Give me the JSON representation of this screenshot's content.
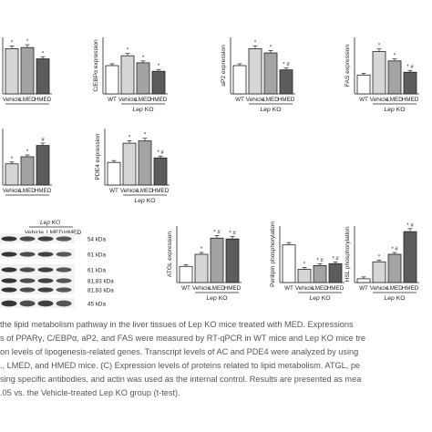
{
  "figure": {
    "charts": [
      {
        "ylabel": "",
        "categories": [
          "Vehicle",
          "LMED",
          "HMED"
        ],
        "sig": [
          "*",
          "*",
          "*"
        ],
        "group_label_partial": ""
      },
      {
        "ylabel": "C/EBPα expression",
        "categories": [
          "WT",
          "Vehicle",
          "LMED",
          "HMED"
        ],
        "sig": [
          "",
          "*",
          "*",
          "*"
        ],
        "group_label": "Lep KO"
      },
      {
        "ylabel": "aP2 expression",
        "categories": [
          "WT",
          "Vehicle",
          "LMED",
          "HMED"
        ],
        "sig": [
          "",
          "*",
          "*",
          "* #"
        ],
        "group_label": "Lep KO"
      },
      {
        "ylabel": "FAS expression",
        "categories": [
          "WT",
          "Vehicle",
          "LMED",
          "HMED"
        ],
        "sig": [
          "",
          "*",
          "*",
          "* #"
        ],
        "group_label": "Lep KO"
      },
      {
        "ylabel": "",
        "categories": [
          "Vehicle",
          "LMED",
          "HMED"
        ],
        "sig": [
          "*",
          "*",
          "#"
        ],
        "group_label_partial": ""
      },
      {
        "ylabel": "PDE4 expression",
        "categories": [
          "WT",
          "Vehicle",
          "LMED",
          "HMED"
        ],
        "sig": [
          "",
          "*",
          "*",
          "* #"
        ],
        "group_label": "Lep KO"
      },
      {
        "ylabel": "ATGL expression",
        "categories": [
          "WT",
          "Vehicle",
          "LMED",
          "HMED"
        ],
        "sig": [
          "",
          "*",
          "* #",
          "* #"
        ],
        "group_label": "Lep KO"
      },
      {
        "ylabel": "Perilipin phosphorylation",
        "categories": [
          "WT",
          "Vehicle",
          "LMED",
          "HMED"
        ],
        "sig": [
          "",
          "*",
          "* #",
          "* #"
        ],
        "group_label": "Lep KO"
      },
      {
        "ylabel": "HSL phosphorylation",
        "categories": [
          "WT",
          "Vehicle",
          "LMED",
          "HMED"
        ],
        "sig": [
          "",
          "*",
          "* #",
          "* #"
        ],
        "group_label": "Lep KO"
      }
    ],
    "western_blot": {
      "group_label": "Lep KO",
      "lanes": [
        "Vehicle",
        "LMED",
        "HMED"
      ],
      "markers": [
        "54 kDa",
        "61 kDa",
        "61 kDa",
        "81,83 kDa",
        "81,83 kDa",
        "45 kDa"
      ]
    }
  },
  "chart_data": [
    {
      "type": "bar",
      "title": "",
      "xlabel": "Lep KO",
      "ylabel": "",
      "categories": [
        "Vehicle",
        "LMED",
        "HMED"
      ],
      "values": [
        2.0,
        2.05,
        1.55
      ],
      "ylim": [
        0,
        2.5
      ]
    },
    {
      "type": "bar",
      "title": "",
      "xlabel": "Lep KO",
      "ylabel": "C/EBPα expression",
      "categories": [
        "WT",
        "Vehicle",
        "LMED",
        "HMED"
      ],
      "values": [
        1.0,
        1.35,
        1.1,
        0.8
      ],
      "ylim": [
        0,
        2.0
      ]
    },
    {
      "type": "bar",
      "title": "",
      "xlabel": "Lep KO",
      "ylabel": "aP2 expression",
      "categories": [
        "WT",
        "Vehicle",
        "LMED",
        "HMED"
      ],
      "values": [
        1.0,
        1.6,
        1.45,
        0.85
      ],
      "ylim": [
        0,
        2.0
      ]
    },
    {
      "type": "bar",
      "title": "",
      "xlabel": "Lep KO",
      "ylabel": "FAS expression",
      "categories": [
        "WT",
        "Vehicle",
        "LMED",
        "HMED"
      ],
      "values": [
        1.0,
        2.25,
        1.75,
        1.15
      ],
      "ylim": [
        0,
        3.0
      ]
    },
    {
      "type": "bar",
      "title": "",
      "xlabel": "Lep KO",
      "ylabel": "",
      "categories": [
        "Vehicle",
        "LMED",
        "HMED"
      ],
      "values": [
        0.75,
        1.0,
        1.4
      ],
      "ylim": [
        0,
        2.0
      ]
    },
    {
      "type": "bar",
      "title": "",
      "xlabel": "Lep KO",
      "ylabel": "PDE4 expression",
      "categories": [
        "WT",
        "Vehicle",
        "LMED",
        "HMED"
      ],
      "values": [
        1.0,
        1.85,
        1.95,
        1.2
      ],
      "ylim": [
        0,
        2.5
      ]
    },
    {
      "type": "bar",
      "title": "",
      "xlabel": "Lep KO",
      "ylabel": "ATGL expression",
      "categories": [
        "WT",
        "Vehicle",
        "LMED",
        "HMED"
      ],
      "values": [
        1.0,
        1.75,
        2.75,
        2.7
      ],
      "ylim": [
        0,
        3.5
      ]
    },
    {
      "type": "bar",
      "title": "",
      "xlabel": "Lep KO",
      "ylabel": "Perilipin phosphorylation",
      "categories": [
        "WT",
        "Vehicle",
        "LMED",
        "HMED"
      ],
      "values": [
        1.0,
        0.35,
        0.45,
        0.5
      ],
      "ylim": [
        0,
        1.5
      ]
    },
    {
      "type": "bar",
      "title": "",
      "xlabel": "Lep KO",
      "ylabel": "HSL phosphorylation",
      "categories": [
        "WT",
        "Vehicle",
        "LMED",
        "HMED"
      ],
      "values": [
        1.0,
        5.5,
        7.5,
        13.5
      ],
      "ylim": [
        0,
        15
      ]
    }
  ],
  "caption": {
    "lines": [
      "the lipid metabolism pathway in the liver tissues of Lep KO mice treated with MED. Expressions",
      "s of PPARγ, C/EBPα, aP2, and FAS were measured by RT-qPCR in WT mice and Lep KO mice tre",
      "on levels of lipogenesis-related genes. Transcript levels of AC and PDE4 were analyzed by using",
      "., LMED, and HMED mice. (C) Expression levels of proteins related to lipid metabolism. ATGL, pe",
      "sing specific antibodies, and actin was used as the internal control. Results are presented as mea",
      ".05 vs. the Vehicle-treated Lep KO group (t-test)."
    ]
  },
  "colors": {
    "WT": "#ffffff",
    "Vehicle": "#d6d6d6",
    "LMED": "#a3a3a3",
    "HMED": "#5c5c5c",
    "text": "#222222",
    "caption": "#555555"
  }
}
